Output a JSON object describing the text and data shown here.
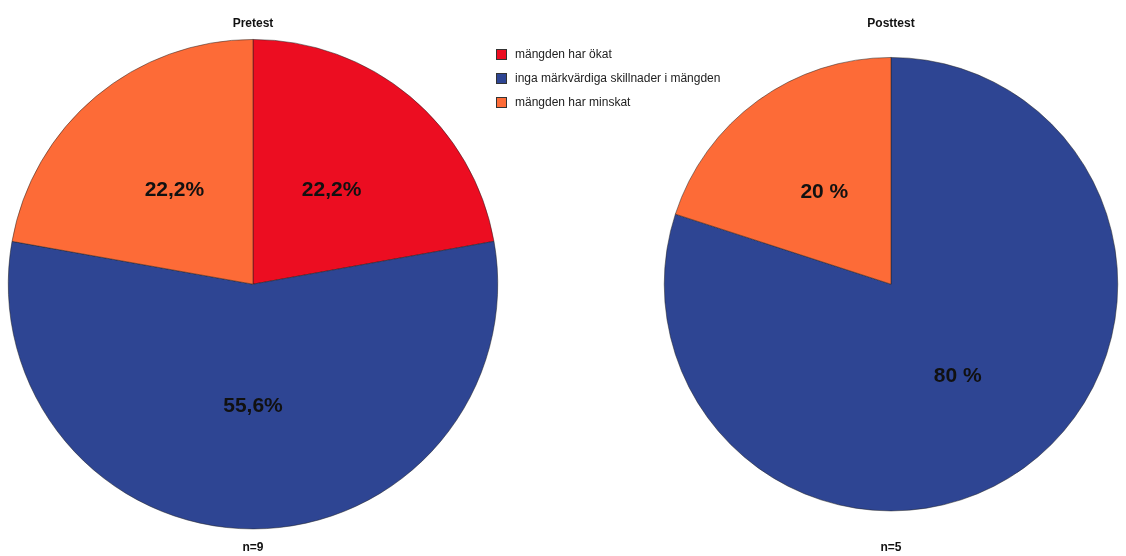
{
  "chart_data": [
    {
      "type": "pie",
      "title": "Pretest",
      "categories": [
        "mängden har ökat",
        "inga märkvärdiga skillnader i mängden",
        "mängden har minskat"
      ],
      "values": [
        22.2,
        55.6,
        22.2
      ],
      "colors": [
        "#ec0d21",
        "#2e4593",
        "#fd6b37"
      ],
      "value_labels": [
        "22,2%",
        "55,6%",
        "22,2%"
      ],
      "legend": "top right",
      "annotations": [
        "n=9"
      ]
    },
    {
      "type": "pie",
      "title": "Posttest",
      "categories": [
        null,
        null
      ],
      "values": [
        80,
        20
      ],
      "colors": [
        "#2e4593",
        "#fd6b37"
      ],
      "value_labels": [
        "80 %",
        "20 %"
      ],
      "annotations": [
        "n=5"
      ]
    }
  ]
}
